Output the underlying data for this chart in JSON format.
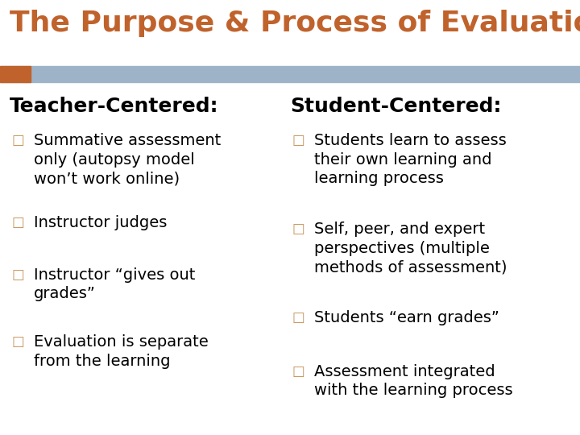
{
  "title": "The Purpose & Process of Evaluation",
  "title_color": "#C0622B",
  "title_fontsize": 26,
  "background_color": "#FFFFFF",
  "header_bar_color": "#9DB3C8",
  "header_bar_accent_color": "#C0622B",
  "left_heading": "Teacher-Centered:",
  "right_heading": "Student-Centered:",
  "heading_fontsize": 18,
  "heading_color": "#000000",
  "bullet_color": "#C8935A",
  "bullet_fontsize": 14,
  "text_color": "#000000",
  "left_bullets": [
    "Summative assessment\nonly (autopsy model\nwon’t work online)",
    "Instructor judges",
    "Instructor “gives out\ngrades”",
    "Evaluation is separate\nfrom the learning"
  ],
  "right_bullets": [
    "Students learn to assess\ntheir own learning and\nlearning process",
    "Self, peer, and expert\nperspectives (multiple\nmethods of assessment)",
    "Students “earn grades”",
    "Assessment integrated\nwith the learning process"
  ],
  "figwidth": 7.2,
  "figheight": 5.4,
  "dpi": 100
}
